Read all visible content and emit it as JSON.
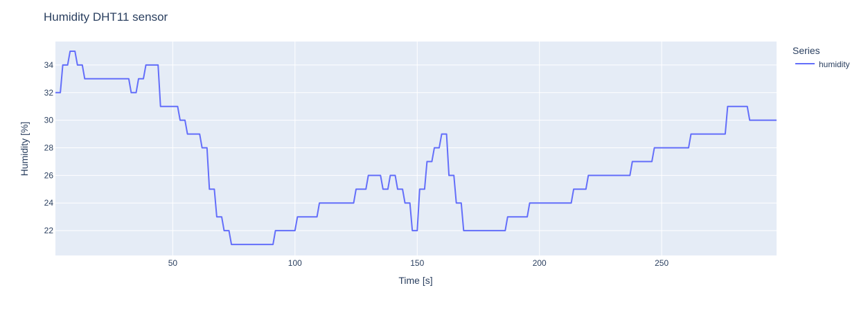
{
  "colors": {
    "plot_bg": "#e5ecf6",
    "grid": "#ffffff",
    "text": "#2a3f5f",
    "series_line": "#636efa"
  },
  "chart_data": {
    "type": "line",
    "title": "Humidity DHT11 sensor",
    "xlabel": "Time [s]",
    "ylabel": "Humidity [%]",
    "xlim": [
      2,
      297
    ],
    "ylim": [
      20.2,
      35.7
    ],
    "x_ticks": [
      50,
      100,
      150,
      200,
      250
    ],
    "y_ticks": [
      22,
      24,
      26,
      28,
      30,
      32,
      34
    ],
    "grid": true,
    "legend": {
      "title": "Series",
      "position": "top-right"
    },
    "series": [
      {
        "name": "humidity",
        "color": "#636efa",
        "points": [
          [
            2,
            32
          ],
          [
            4,
            32
          ],
          [
            5,
            34
          ],
          [
            7,
            34
          ],
          [
            8,
            35
          ],
          [
            10,
            35
          ],
          [
            11,
            34
          ],
          [
            13,
            34
          ],
          [
            14,
            33
          ],
          [
            32,
            33
          ],
          [
            33,
            32
          ],
          [
            35,
            32
          ],
          [
            36,
            33
          ],
          [
            38,
            33
          ],
          [
            39,
            34
          ],
          [
            44,
            34
          ],
          [
            45,
            31
          ],
          [
            52,
            31
          ],
          [
            53,
            30
          ],
          [
            55,
            30
          ],
          [
            56,
            29
          ],
          [
            61,
            29
          ],
          [
            62,
            28
          ],
          [
            64,
            28
          ],
          [
            65,
            25
          ],
          [
            67,
            25
          ],
          [
            68,
            23
          ],
          [
            70,
            23
          ],
          [
            71,
            22
          ],
          [
            73,
            22
          ],
          [
            74,
            21
          ],
          [
            91,
            21
          ],
          [
            92,
            22
          ],
          [
            100,
            22
          ],
          [
            101,
            23
          ],
          [
            109,
            23
          ],
          [
            110,
            24
          ],
          [
            124,
            24
          ],
          [
            125,
            25
          ],
          [
            129,
            25
          ],
          [
            130,
            26
          ],
          [
            135,
            26
          ],
          [
            136,
            25
          ],
          [
            138,
            25
          ],
          [
            139,
            26
          ],
          [
            141,
            26
          ],
          [
            142,
            25
          ],
          [
            144,
            25
          ],
          [
            145,
            24
          ],
          [
            147,
            24
          ],
          [
            148,
            22
          ],
          [
            150,
            22
          ],
          [
            151,
            25
          ],
          [
            153,
            25
          ],
          [
            154,
            27
          ],
          [
            156,
            27
          ],
          [
            157,
            28
          ],
          [
            159,
            28
          ],
          [
            160,
            29
          ],
          [
            162,
            29
          ],
          [
            163,
            26
          ],
          [
            165,
            26
          ],
          [
            166,
            24
          ],
          [
            168,
            24
          ],
          [
            169,
            22
          ],
          [
            186,
            22
          ],
          [
            187,
            23
          ],
          [
            195,
            23
          ],
          [
            196,
            24
          ],
          [
            213,
            24
          ],
          [
            214,
            25
          ],
          [
            219,
            25
          ],
          [
            220,
            26
          ],
          [
            237,
            26
          ],
          [
            238,
            27
          ],
          [
            246,
            27
          ],
          [
            247,
            28
          ],
          [
            261,
            28
          ],
          [
            262,
            29
          ],
          [
            276,
            29
          ],
          [
            277,
            31
          ],
          [
            285,
            31
          ],
          [
            286,
            30
          ],
          [
            297,
            30
          ]
        ]
      }
    ]
  }
}
